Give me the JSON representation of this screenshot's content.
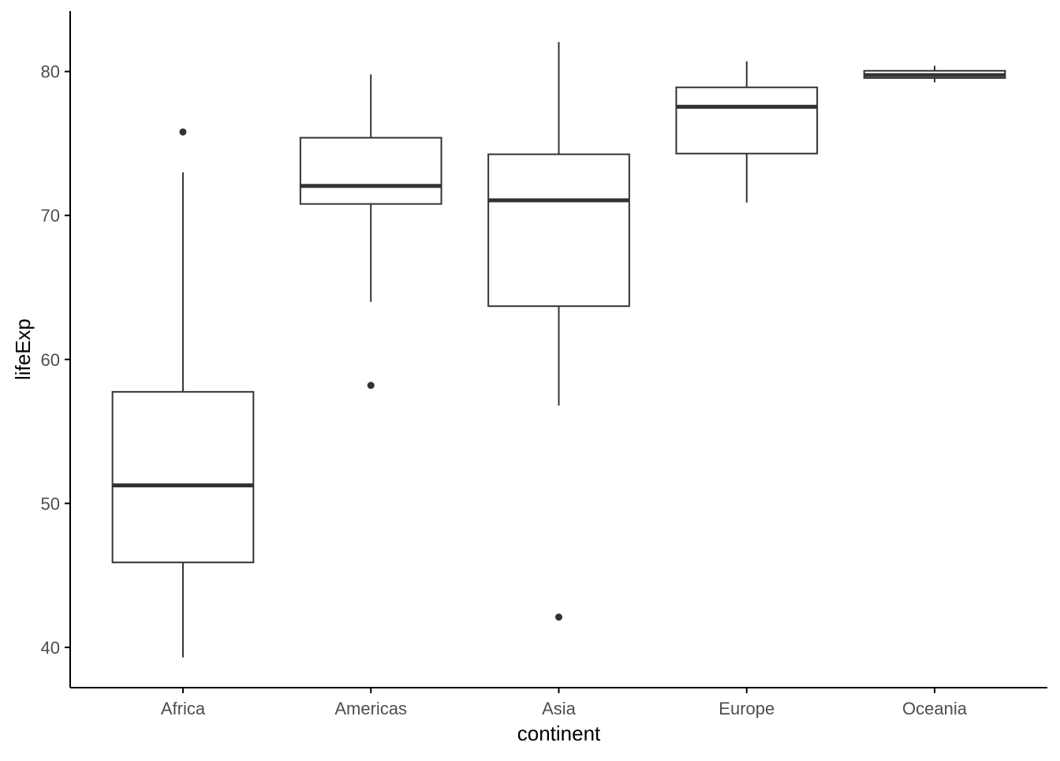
{
  "chart_data": {
    "type": "boxplot",
    "xlabel": "continent",
    "ylabel": "lifeExp",
    "categories": [
      "Africa",
      "Americas",
      "Asia",
      "Europe",
      "Oceania"
    ],
    "ylim": [
      37.2,
      84.2
    ],
    "yticks": [
      40,
      50,
      60,
      70,
      80
    ],
    "grid": false,
    "boxes": [
      {
        "category": "Africa",
        "whisker_low": 39.3,
        "q1": 45.9,
        "median": 51.25,
        "q3": 57.75,
        "whisker_high": 73.0,
        "outliers": [
          75.8
        ]
      },
      {
        "category": "Americas",
        "whisker_low": 64.0,
        "q1": 70.8,
        "median": 72.05,
        "q3": 75.4,
        "whisker_high": 79.8,
        "outliers": [
          58.2
        ]
      },
      {
        "category": "Asia",
        "whisker_low": 56.8,
        "q1": 63.7,
        "median": 71.05,
        "q3": 74.25,
        "whisker_high": 82.05,
        "outliers": [
          42.1
        ]
      },
      {
        "category": "Europe",
        "whisker_low": 70.9,
        "q1": 74.3,
        "median": 77.55,
        "q3": 78.9,
        "whisker_high": 80.7,
        "outliers": []
      },
      {
        "category": "Oceania",
        "whisker_low": 79.25,
        "q1": 79.55,
        "median": 79.75,
        "q3": 80.05,
        "whisker_high": 80.4,
        "outliers": []
      }
    ],
    "colors": {
      "box_stroke": "#333333",
      "box_fill": "#ffffff",
      "axis": "#000000",
      "tick_text": "#4d4d4d",
      "title_text": "#000000"
    }
  }
}
